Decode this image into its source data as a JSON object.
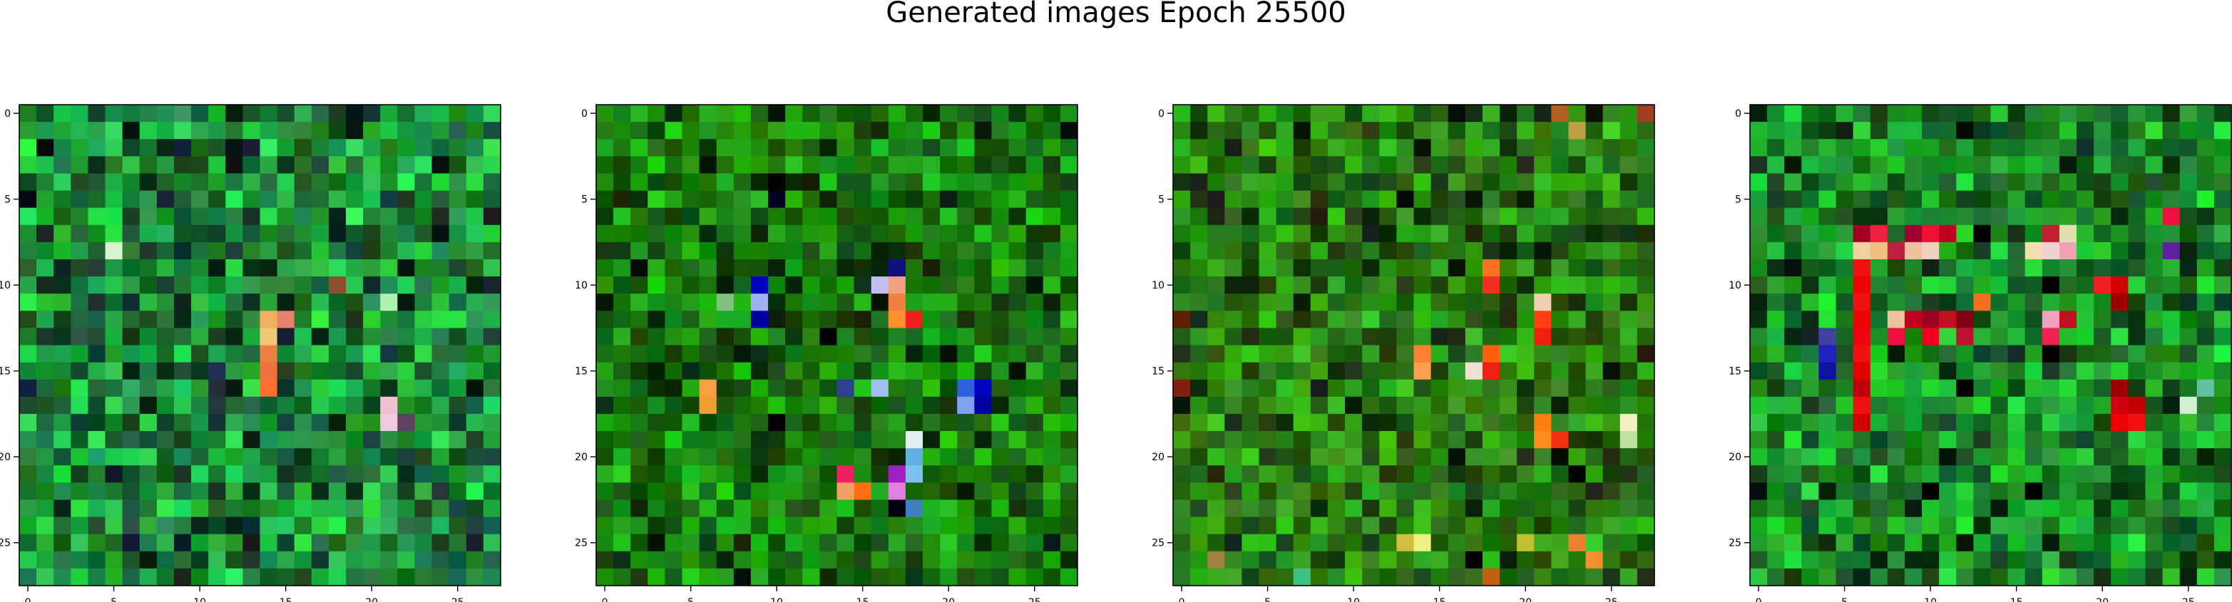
{
  "chart_data": {
    "type": "heatmap",
    "title": "Generated images Epoch 25500",
    "image_size": 28,
    "x_ticks": [
      "0",
      "5",
      "10",
      "15",
      "20",
      "25"
    ],
    "y_ticks": [
      "0",
      "5",
      "10",
      "15",
      "20",
      "25"
    ],
    "panels": [
      {
        "name": "image-1",
        "base_color": "#1f8a3a",
        "variation": 55,
        "hotspots": [
          {
            "r": 8,
            "c": 5,
            "color": "#d8f2d0"
          },
          {
            "r": 12,
            "c": 14,
            "color": "#f0b060"
          },
          {
            "r": 13,
            "c": 14,
            "color": "#f0c878"
          },
          {
            "r": 12,
            "c": 15,
            "color": "#e88070"
          },
          {
            "r": 14,
            "c": 14,
            "color": "#f08040"
          },
          {
            "r": 15,
            "c": 14,
            "color": "#f07040"
          },
          {
            "r": 16,
            "c": 14,
            "color": "#ff7030"
          },
          {
            "r": 10,
            "c": 18,
            "color": "#8a5030"
          },
          {
            "r": 11,
            "c": 21,
            "color": "#b0f0b0"
          },
          {
            "r": 17,
            "c": 21,
            "color": "#f0c0d0"
          },
          {
            "r": 18,
            "c": 21,
            "color": "#f0c8e0"
          },
          {
            "r": 18,
            "c": 22,
            "color": "#604060"
          },
          {
            "r": 15,
            "c": 11,
            "color": "#203050"
          },
          {
            "r": 16,
            "c": 0,
            "color": "#102040"
          },
          {
            "r": 25,
            "c": 13,
            "color": "#181818"
          },
          {
            "r": 3,
            "c": 12,
            "color": "#101010"
          }
        ]
      },
      {
        "name": "image-2",
        "base_color": "#1a7a10",
        "variation": 45,
        "hotspots": [
          {
            "r": 4,
            "c": 10,
            "color": "#000000"
          },
          {
            "r": 5,
            "c": 10,
            "color": "#000020"
          },
          {
            "r": 10,
            "c": 9,
            "color": "#0000c0"
          },
          {
            "r": 11,
            "c": 9,
            "color": "#a0b0f0"
          },
          {
            "r": 12,
            "c": 9,
            "color": "#0000a0"
          },
          {
            "r": 11,
            "c": 7,
            "color": "#80c080"
          },
          {
            "r": 9,
            "c": 17,
            "color": "#101080"
          },
          {
            "r": 10,
            "c": 17,
            "color": "#f0a080"
          },
          {
            "r": 11,
            "c": 17,
            "color": "#f08040"
          },
          {
            "r": 12,
            "c": 17,
            "color": "#ff9030"
          },
          {
            "r": 12,
            "c": 18,
            "color": "#f02020"
          },
          {
            "r": 10,
            "c": 16,
            "color": "#c0c0f0"
          },
          {
            "r": 16,
            "c": 6,
            "color": "#f8a040"
          },
          {
            "r": 17,
            "c": 6,
            "color": "#f0a030"
          },
          {
            "r": 16,
            "c": 14,
            "color": "#304090"
          },
          {
            "r": 16,
            "c": 16,
            "color": "#a0c0f0"
          },
          {
            "r": 16,
            "c": 21,
            "color": "#3060e0"
          },
          {
            "r": 17,
            "c": 21,
            "color": "#80a0f0"
          },
          {
            "r": 16,
            "c": 22,
            "color": "#0000c0"
          },
          {
            "r": 17,
            "c": 22,
            "color": "#0000a0"
          },
          {
            "r": 19,
            "c": 18,
            "color": "#e0f0f0"
          },
          {
            "r": 20,
            "c": 18,
            "color": "#60b0e0"
          },
          {
            "r": 21,
            "c": 17,
            "color": "#a020c0"
          },
          {
            "r": 21,
            "c": 18,
            "color": "#80c0f0"
          },
          {
            "r": 21,
            "c": 14,
            "color": "#f02060"
          },
          {
            "r": 22,
            "c": 14,
            "color": "#f0a060"
          },
          {
            "r": 22,
            "c": 15,
            "color": "#ff7010"
          },
          {
            "r": 22,
            "c": 17,
            "color": "#e080e0"
          },
          {
            "r": 23,
            "c": 17,
            "color": "#000010"
          },
          {
            "r": 23,
            "c": 18,
            "color": "#4080c0"
          },
          {
            "r": 18,
            "c": 10,
            "color": "#000000"
          },
          {
            "r": 13,
            "c": 13,
            "color": "#000000"
          }
        ]
      },
      {
        "name": "image-3",
        "base_color": "#2a7a14",
        "variation": 45,
        "hotspots": [
          {
            "r": 9,
            "c": 18,
            "color": "#ff7020"
          },
          {
            "r": 10,
            "c": 18,
            "color": "#f03020"
          },
          {
            "r": 11,
            "c": 21,
            "color": "#f0d0b0"
          },
          {
            "r": 12,
            "c": 21,
            "color": "#ff4010"
          },
          {
            "r": 13,
            "c": 21,
            "color": "#f02010"
          },
          {
            "r": 14,
            "c": 14,
            "color": "#ff8030"
          },
          {
            "r": 15,
            "c": 14,
            "color": "#ffa050"
          },
          {
            "r": 14,
            "c": 18,
            "color": "#ff6010"
          },
          {
            "r": 15,
            "c": 17,
            "color": "#f0e0d0"
          },
          {
            "r": 15,
            "c": 18,
            "color": "#f02010"
          },
          {
            "r": 18,
            "c": 21,
            "color": "#ff8010"
          },
          {
            "r": 19,
            "c": 21,
            "color": "#ff9020"
          },
          {
            "r": 19,
            "c": 22,
            "color": "#f03010"
          },
          {
            "r": 18,
            "c": 26,
            "color": "#f0f0c0"
          },
          {
            "r": 19,
            "c": 26,
            "color": "#c0e0a0"
          },
          {
            "r": 0,
            "c": 24,
            "color": "#101000"
          },
          {
            "r": 0,
            "c": 22,
            "color": "#b06020"
          },
          {
            "r": 1,
            "c": 23,
            "color": "#c0a040"
          },
          {
            "r": 0,
            "c": 27,
            "color": "#a04020"
          },
          {
            "r": 21,
            "c": 23,
            "color": "#000000"
          },
          {
            "r": 25,
            "c": 13,
            "color": "#d0c040"
          },
          {
            "r": 25,
            "c": 14,
            "color": "#f0f080"
          },
          {
            "r": 25,
            "c": 20,
            "color": "#c0c030"
          },
          {
            "r": 25,
            "c": 23,
            "color": "#f08030"
          },
          {
            "r": 26,
            "c": 24,
            "color": "#f09030"
          },
          {
            "r": 27,
            "c": 18,
            "color": "#c06010"
          },
          {
            "r": 27,
            "c": 7,
            "color": "#40c080"
          },
          {
            "r": 26,
            "c": 2,
            "color": "#a08040"
          },
          {
            "r": 26,
            "c": 17,
            "color": "#000000"
          },
          {
            "r": 16,
            "c": 0,
            "color": "#802010"
          },
          {
            "r": 12,
            "c": 0,
            "color": "#602000"
          }
        ]
      },
      {
        "name": "image-4",
        "base_color": "#1c8a28",
        "variation": 50,
        "hotspots": [
          {
            "r": 7,
            "c": 6,
            "color": "#a00020"
          },
          {
            "r": 7,
            "c": 7,
            "color": "#f02040"
          },
          {
            "r": 7,
            "c": 9,
            "color": "#a00030"
          },
          {
            "r": 7,
            "c": 10,
            "color": "#f01030"
          },
          {
            "r": 7,
            "c": 11,
            "color": "#c00020"
          },
          {
            "r": 8,
            "c": 6,
            "color": "#f0d0a0"
          },
          {
            "r": 8,
            "c": 7,
            "color": "#f0c080"
          },
          {
            "r": 8,
            "c": 8,
            "color": "#c02040"
          },
          {
            "r": 8,
            "c": 9,
            "color": "#f0c0a0"
          },
          {
            "r": 8,
            "c": 10,
            "color": "#f0d0c0"
          },
          {
            "r": 9,
            "c": 6,
            "color": "#f01010"
          },
          {
            "r": 10,
            "c": 6,
            "color": "#f00000"
          },
          {
            "r": 11,
            "c": 6,
            "color": "#f01010"
          },
          {
            "r": 12,
            "c": 6,
            "color": "#f00000"
          },
          {
            "r": 13,
            "c": 6,
            "color": "#f00010"
          },
          {
            "r": 14,
            "c": 6,
            "color": "#f01010"
          },
          {
            "r": 15,
            "c": 6,
            "color": "#e00000"
          },
          {
            "r": 16,
            "c": 6,
            "color": "#c00010"
          },
          {
            "r": 17,
            "c": 6,
            "color": "#f01010"
          },
          {
            "r": 18,
            "c": 6,
            "color": "#d00000"
          },
          {
            "r": 12,
            "c": 8,
            "color": "#f0c0a0"
          },
          {
            "r": 12,
            "c": 9,
            "color": "#c00020"
          },
          {
            "r": 12,
            "c": 10,
            "color": "#a00020"
          },
          {
            "r": 12,
            "c": 11,
            "color": "#c01020"
          },
          {
            "r": 12,
            "c": 12,
            "color": "#800010"
          },
          {
            "r": 11,
            "c": 13,
            "color": "#f07020"
          },
          {
            "r": 13,
            "c": 8,
            "color": "#f01040"
          },
          {
            "r": 13,
            "c": 10,
            "color": "#f00020"
          },
          {
            "r": 13,
            "c": 12,
            "color": "#c01030"
          },
          {
            "r": 13,
            "c": 17,
            "color": "#f02050"
          },
          {
            "r": 12,
            "c": 17,
            "color": "#f0a0c0"
          },
          {
            "r": 12,
            "c": 18,
            "color": "#c01020"
          },
          {
            "r": 8,
            "c": 17,
            "color": "#f0d0d0"
          },
          {
            "r": 8,
            "c": 18,
            "color": "#f0a0b0"
          },
          {
            "r": 7,
            "c": 17,
            "color": "#c02030"
          },
          {
            "r": 7,
            "c": 18,
            "color": "#e0e0b0"
          },
          {
            "r": 8,
            "c": 16,
            "color": "#f0e0b0"
          },
          {
            "r": 10,
            "c": 20,
            "color": "#f02020"
          },
          {
            "r": 10,
            "c": 21,
            "color": "#d00000"
          },
          {
            "r": 11,
            "c": 21,
            "color": "#a00000"
          },
          {
            "r": 16,
            "c": 21,
            "color": "#a00000"
          },
          {
            "r": 17,
            "c": 21,
            "color": "#d00010"
          },
          {
            "r": 18,
            "c": 21,
            "color": "#f00000"
          },
          {
            "r": 18,
            "c": 22,
            "color": "#f01010"
          },
          {
            "r": 17,
            "c": 22,
            "color": "#c00000"
          },
          {
            "r": 14,
            "c": 4,
            "color": "#2020c0"
          },
          {
            "r": 13,
            "c": 4,
            "color": "#4040a0"
          },
          {
            "r": 15,
            "c": 4,
            "color": "#1010a0"
          },
          {
            "r": 8,
            "c": 24,
            "color": "#6020a0"
          },
          {
            "r": 6,
            "c": 24,
            "color": "#f01040"
          },
          {
            "r": 17,
            "c": 25,
            "color": "#d0f0d0"
          },
          {
            "r": 16,
            "c": 26,
            "color": "#60c0a0"
          },
          {
            "r": 7,
            "c": 13,
            "color": "#000000"
          },
          {
            "r": 10,
            "c": 17,
            "color": "#000000"
          },
          {
            "r": 14,
            "c": 17,
            "color": "#000000"
          },
          {
            "r": 16,
            "c": 12,
            "color": "#000000"
          },
          {
            "r": 22,
            "c": 10,
            "color": "#000000"
          },
          {
            "r": 22,
            "c": 16,
            "color": "#000000"
          }
        ]
      }
    ]
  }
}
